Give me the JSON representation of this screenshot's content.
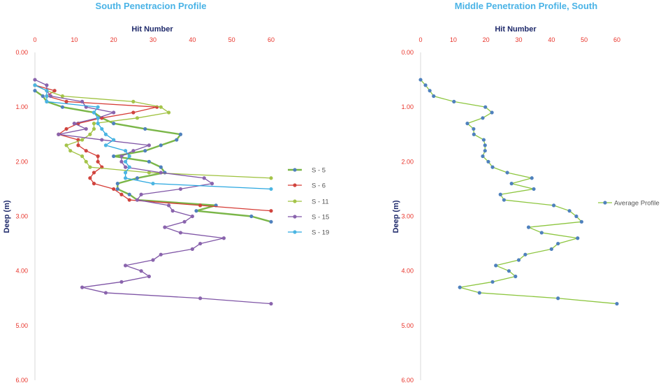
{
  "chart_data": [
    {
      "type": "line",
      "title": "South Penetracion Profile",
      "xlabel": "Hit Number",
      "ylabel": "Deep (m)",
      "xlim": [
        0,
        60
      ],
      "ylim": [
        0,
        6
      ],
      "y_inverted": true,
      "x_ticks": [
        "0",
        "10",
        "20",
        "30",
        "40",
        "50",
        "60"
      ],
      "y_ticks": [
        "0.00",
        "1.00",
        "2.00",
        "3.00",
        "4.00",
        "5.00",
        "6.00"
      ],
      "legend_position": "right",
      "series": [
        {
          "name": "S - 5",
          "line_color": "#7ab648",
          "marker_color": "#4f81bd",
          "thick": true,
          "points": [
            [
              0,
              0.7
            ],
            [
              2,
              0.8
            ],
            [
              3,
              0.9
            ],
            [
              7,
              1.0
            ],
            [
              15,
              1.1
            ],
            [
              17,
              1.2
            ],
            [
              20,
              1.3
            ],
            [
              28,
              1.4
            ],
            [
              37,
              1.5
            ],
            [
              36,
              1.6
            ],
            [
              32,
              1.7
            ],
            [
              28,
              1.8
            ],
            [
              20,
              1.9
            ],
            [
              29,
              2.0
            ],
            [
              32,
              2.1
            ],
            [
              33,
              2.2
            ],
            [
              26,
              2.3
            ],
            [
              21,
              2.4
            ],
            [
              21,
              2.5
            ],
            [
              24,
              2.6
            ],
            [
              26,
              2.7
            ],
            [
              46,
              2.8
            ],
            [
              41,
              2.9
            ],
            [
              55,
              3.0
            ],
            [
              60,
              3.1
            ]
          ]
        },
        {
          "name": "S - 6",
          "line_color": "#d63c36",
          "marker_color": "#d0443e",
          "thick": false,
          "points": [
            [
              0,
              0.6
            ],
            [
              5,
              0.7
            ],
            [
              3,
              0.8
            ],
            [
              8,
              0.9
            ],
            [
              31,
              1.0
            ],
            [
              25,
              1.1
            ],
            [
              17,
              1.2
            ],
            [
              11,
              1.3
            ],
            [
              8,
              1.4
            ],
            [
              6,
              1.5
            ],
            [
              11,
              1.6
            ],
            [
              11,
              1.7
            ],
            [
              13,
              1.8
            ],
            [
              16,
              1.9
            ],
            [
              16,
              2.0
            ],
            [
              17,
              2.1
            ],
            [
              15,
              2.2
            ],
            [
              14,
              2.3
            ],
            [
              15,
              2.4
            ],
            [
              20,
              2.5
            ],
            [
              22,
              2.6
            ],
            [
              24,
              2.7
            ],
            [
              42,
              2.8
            ],
            [
              60,
              2.9
            ]
          ]
        },
        {
          "name": "S - 11",
          "line_color": "#9fc23f",
          "marker_color": "#a5c44a",
          "thick": false,
          "points": [
            [
              0,
              0.6
            ],
            [
              3,
              0.7
            ],
            [
              7,
              0.8
            ],
            [
              25,
              0.9
            ],
            [
              32,
              1.0
            ],
            [
              34,
              1.1
            ],
            [
              26,
              1.2
            ],
            [
              15,
              1.3
            ],
            [
              15,
              1.4
            ],
            [
              14,
              1.5
            ],
            [
              12,
              1.6
            ],
            [
              8,
              1.7
            ],
            [
              9,
              1.8
            ],
            [
              12,
              1.9
            ],
            [
              13,
              2.0
            ],
            [
              14,
              2.1
            ],
            [
              29,
              2.2
            ],
            [
              60,
              2.3
            ]
          ]
        },
        {
          "name": "S - 15",
          "line_color": "#7f55a6",
          "marker_color": "#8a64ad",
          "thick": false,
          "points": [
            [
              0,
              0.5
            ],
            [
              3,
              0.6
            ],
            [
              3,
              0.7
            ],
            [
              4,
              0.8
            ],
            [
              12,
              0.9
            ],
            [
              13,
              1.0
            ],
            [
              20,
              1.1
            ],
            [
              16,
              1.2
            ],
            [
              10,
              1.3
            ],
            [
              13,
              1.4
            ],
            [
              6,
              1.5
            ],
            [
              17,
              1.6
            ],
            [
              29,
              1.7
            ],
            [
              25,
              1.8
            ],
            [
              22,
              1.9
            ],
            [
              22,
              2.0
            ],
            [
              23,
              2.1
            ],
            [
              32,
              2.2
            ],
            [
              43,
              2.3
            ],
            [
              45,
              2.4
            ],
            [
              37,
              2.5
            ],
            [
              27,
              2.6
            ],
            [
              26,
              2.7
            ],
            [
              34,
              2.8
            ],
            [
              35,
              2.9
            ],
            [
              40,
              3.0
            ],
            [
              38,
              3.1
            ],
            [
              33,
              3.2
            ],
            [
              37,
              3.3
            ],
            [
              48,
              3.4
            ],
            [
              42,
              3.5
            ],
            [
              40,
              3.6
            ],
            [
              32,
              3.7
            ],
            [
              30,
              3.8
            ],
            [
              23,
              3.9
            ],
            [
              27,
              4.0
            ],
            [
              29,
              4.1
            ],
            [
              22,
              4.2
            ],
            [
              12,
              4.3
            ],
            [
              18,
              4.4
            ],
            [
              42,
              4.5
            ],
            [
              60,
              4.6
            ]
          ]
        },
        {
          "name": "S - 19",
          "line_color": "#2aa7e0",
          "marker_color": "#4bb5e2",
          "thick": false,
          "points": [
            [
              0,
              0.6
            ],
            [
              3,
              0.7
            ],
            [
              3,
              0.8
            ],
            [
              3,
              0.9
            ],
            [
              16,
              1.0
            ],
            [
              15,
              1.1
            ],
            [
              16,
              1.2
            ],
            [
              16,
              1.3
            ],
            [
              17,
              1.4
            ],
            [
              18,
              1.5
            ],
            [
              20,
              1.6
            ],
            [
              18,
              1.7
            ],
            [
              23,
              1.8
            ],
            [
              24,
              1.9
            ],
            [
              23,
              2.0
            ],
            [
              24,
              2.1
            ],
            [
              23,
              2.2
            ],
            [
              23,
              2.3
            ],
            [
              30,
              2.4
            ],
            [
              60,
              2.5
            ]
          ]
        }
      ]
    },
    {
      "type": "line",
      "title": "Middle Penetration Profile, South",
      "xlabel": "Hit Number",
      "ylabel": "Deep (m)",
      "xlim": [
        0,
        60
      ],
      "ylim": [
        0,
        6
      ],
      "y_inverted": true,
      "x_ticks": [
        "0",
        "10",
        "20",
        "30",
        "40",
        "50",
        "60"
      ],
      "y_ticks": [
        "0.00",
        "1.00",
        "2.00",
        "3.00",
        "4.00",
        "5.00",
        "6.00"
      ],
      "legend_position": "right",
      "series": [
        {
          "name": "Average Profile",
          "line_color": "#8dc63f",
          "marker_color": "#4f81bd",
          "thick": false,
          "points": [
            [
              0,
              0.5
            ],
            [
              1.5,
              0.6
            ],
            [
              2.8,
              0.7
            ],
            [
              4,
              0.8
            ],
            [
              10.2,
              0.9
            ],
            [
              19.8,
              1.0
            ],
            [
              21.8,
              1.1
            ],
            [
              19,
              1.2
            ],
            [
              14.3,
              1.3
            ],
            [
              16.2,
              1.4
            ],
            [
              16.3,
              1.5
            ],
            [
              19.3,
              1.6
            ],
            [
              19.7,
              1.7
            ],
            [
              19.7,
              1.8
            ],
            [
              19,
              1.9
            ],
            [
              20.7,
              2.0
            ],
            [
              22,
              2.1
            ],
            [
              26.5,
              2.2
            ],
            [
              34,
              2.3
            ],
            [
              27.8,
              2.4
            ],
            [
              34.6,
              2.5
            ],
            [
              24.4,
              2.6
            ],
            [
              25.5,
              2.7
            ],
            [
              40.7,
              2.8
            ],
            [
              45.5,
              2.9
            ],
            [
              47.6,
              3.0
            ],
            [
              49.2,
              3.1
            ],
            [
              33,
              3.2
            ],
            [
              37,
              3.3
            ],
            [
              48,
              3.4
            ],
            [
              42,
              3.5
            ],
            [
              40,
              3.6
            ],
            [
              32,
              3.7
            ],
            [
              30,
              3.8
            ],
            [
              23,
              3.9
            ],
            [
              27,
              4.0
            ],
            [
              29,
              4.1
            ],
            [
              22,
              4.2
            ],
            [
              12,
              4.3
            ],
            [
              18,
              4.4
            ],
            [
              42,
              4.5
            ],
            [
              60,
              4.6
            ]
          ]
        }
      ]
    }
  ]
}
